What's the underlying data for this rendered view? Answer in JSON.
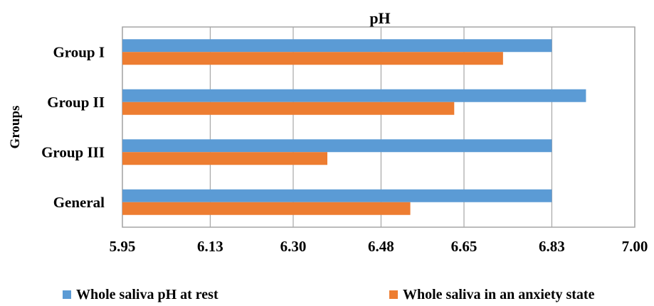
{
  "chart_data": {
    "type": "bar",
    "orientation": "horizontal",
    "title": "pH",
    "ylabel": "Groups",
    "xlabel": "",
    "categories": [
      "Group I",
      "Group II",
      "Group III",
      "General"
    ],
    "series": [
      {
        "name": "Whole saliva pH at rest",
        "color": "#5b9bd5",
        "values": [
          6.83,
          6.9,
          6.83,
          6.83
        ]
      },
      {
        "name": "Whole saliva in an anxiety state",
        "color": "#ed7d31",
        "values": [
          6.73,
          6.63,
          6.37,
          6.54
        ]
      }
    ],
    "xlim": [
      5.95,
      7.0
    ],
    "xticks": [
      "5.95",
      "6.13",
      "6.30",
      "6.48",
      "6.65",
      "6.83",
      "7.00"
    ],
    "grid": true,
    "legend_position": "bottom"
  }
}
